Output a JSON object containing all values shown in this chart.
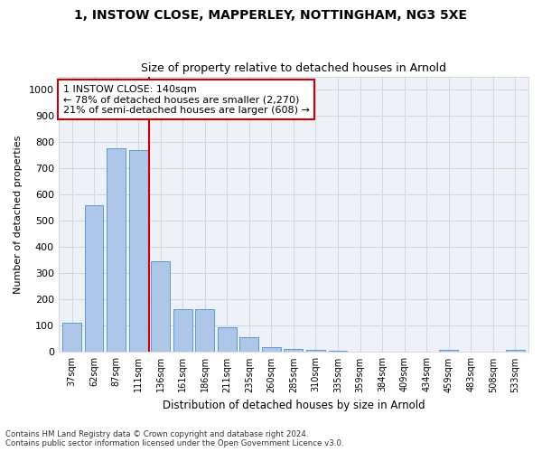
{
  "title_line1": "1, INSTOW CLOSE, MAPPERLEY, NOTTINGHAM, NG3 5XE",
  "title_line2": "Size of property relative to detached houses in Arnold",
  "xlabel": "Distribution of detached houses by size in Arnold",
  "ylabel": "Number of detached properties",
  "categories": [
    "37sqm",
    "62sqm",
    "87sqm",
    "111sqm",
    "136sqm",
    "161sqm",
    "186sqm",
    "211sqm",
    "235sqm",
    "260sqm",
    "285sqm",
    "310sqm",
    "335sqm",
    "359sqm",
    "384sqm",
    "409sqm",
    "434sqm",
    "459sqm",
    "483sqm",
    "508sqm",
    "533sqm"
  ],
  "values": [
    110,
    558,
    775,
    770,
    345,
    163,
    163,
    95,
    55,
    20,
    13,
    10,
    5,
    0,
    0,
    0,
    0,
    8,
    0,
    0,
    8
  ],
  "bar_color": "#aec6e8",
  "bar_edgecolor": "#5b9bd5",
  "grid_color": "#d0d8e8",
  "bg_color": "#eef2f8",
  "vline_x_index": 3.5,
  "vline_color": "#cc0000",
  "annotation_text": "1 INSTOW CLOSE: 140sqm\n← 78% of detached houses are smaller (2,270)\n21% of semi-detached houses are larger (608) →",
  "annotation_box_edgecolor": "#cc0000",
  "ylim": [
    0,
    1050
  ],
  "yticks": [
    0,
    100,
    200,
    300,
    400,
    500,
    600,
    700,
    800,
    900,
    1000
  ],
  "footnote1": "Contains HM Land Registry data © Crown copyright and database right 2024.",
  "footnote2": "Contains public sector information licensed under the Open Government Licence v3.0."
}
